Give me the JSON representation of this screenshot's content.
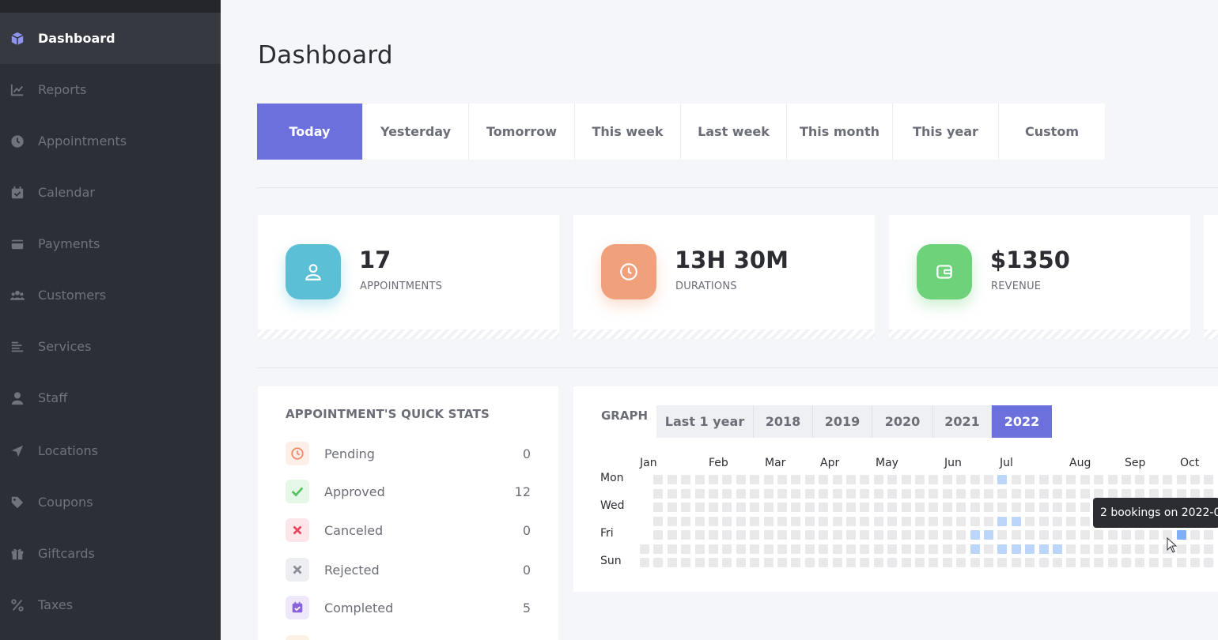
{
  "sidebar": {
    "items": [
      {
        "label": "Dashboard",
        "icon": "cube-icon"
      },
      {
        "label": "Reports",
        "icon": "chart-icon"
      },
      {
        "label": "Appointments",
        "icon": "clock-icon"
      },
      {
        "label": "Calendar",
        "icon": "calendar-check-icon"
      },
      {
        "label": "Payments",
        "icon": "wallet-icon"
      },
      {
        "label": "Customers",
        "icon": "users-icon"
      },
      {
        "label": "Services",
        "icon": "list-icon"
      },
      {
        "label": "Staff",
        "icon": "user-icon"
      },
      {
        "label": "Locations",
        "icon": "location-arrow-icon"
      },
      {
        "label": "Coupons",
        "icon": "tag-icon"
      },
      {
        "label": "Giftcards",
        "icon": "gift-icon"
      },
      {
        "label": "Taxes",
        "icon": "percent-icon"
      }
    ]
  },
  "page_title": "Dashboard",
  "range_tabs": [
    "Today",
    "Yesterday",
    "Tomorrow",
    "This week",
    "Last week",
    "This month",
    "This year",
    "Custom"
  ],
  "active_range": "Today",
  "stats": [
    {
      "value": "17",
      "label": "APPOINTMENTS",
      "color": "#5bbfd6",
      "icon": "user-icon"
    },
    {
      "value": "13H 30M",
      "label": "DURATIONS",
      "color": "#f0a07a",
      "icon": "clock-icon"
    },
    {
      "value": "$1350",
      "label": "REVENUE",
      "color": "#6dd27a",
      "icon": "wallet-icon"
    }
  ],
  "quick_stats": {
    "title": "APPOINTMENT'S QUICK STATS",
    "rows": [
      {
        "label": "Pending",
        "value": "0",
        "icon": "clock-icon",
        "color": "#f08a67",
        "bg": "#fdeee8"
      },
      {
        "label": "Approved",
        "value": "12",
        "icon": "check-icon",
        "color": "#53c25f",
        "bg": "#e5f7e7"
      },
      {
        "label": "Canceled",
        "value": "0",
        "icon": "x-icon",
        "color": "#e8455f",
        "bg": "#fde6ea"
      },
      {
        "label": "Rejected",
        "value": "0",
        "icon": "x-icon",
        "color": "#8d9099",
        "bg": "#eceef2"
      },
      {
        "label": "Completed",
        "value": "5",
        "icon": "calendar-check-icon",
        "color": "#8a63d8",
        "bg": "#efe8fb"
      }
    ]
  },
  "graph": {
    "title": "GRAPH",
    "year_tabs": [
      "Last 1 year",
      "2018",
      "2019",
      "2020",
      "2021",
      "2022"
    ],
    "active_year": "2022",
    "months": [
      "Jan",
      "Feb",
      "Mar",
      "Apr",
      "May",
      "Jun",
      "Jul",
      "Aug",
      "Sep",
      "Oct"
    ],
    "days": [
      "Mon",
      "Wed",
      "Fri",
      "Sun"
    ],
    "tooltip": "2 bookings on 2022-0"
  },
  "colors": {
    "accent": "#6c70dc",
    "sidebar": "#2c2f35",
    "cell_empty": "#e9e9eb",
    "cell_on": "#bcd5fb",
    "cell_hi": "#7fb0f6"
  }
}
